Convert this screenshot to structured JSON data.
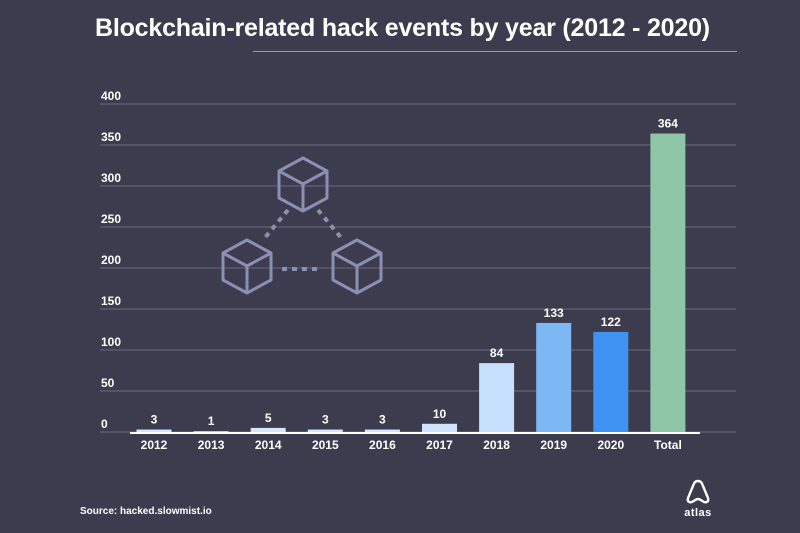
{
  "chart_data": {
    "type": "bar",
    "title": "Blockchain-related hack events by year (2012 - 2020)",
    "categories": [
      "2012",
      "2013",
      "2014",
      "2015",
      "2016",
      "2017",
      "2018",
      "2019",
      "2020",
      "Total"
    ],
    "values": [
      3,
      1,
      5,
      3,
      3,
      10,
      84,
      133,
      122,
      364
    ],
    "data_labels": [
      "3",
      "1",
      "5",
      "3",
      "3",
      "10",
      "84",
      "133",
      "122",
      "364"
    ],
    "bar_colors": [
      "#d6e7fb",
      "#d6e7fb",
      "#d6e7fb",
      "#d6e7fb",
      "#d6e7fb",
      "#cfe3fb",
      "#c5dffd",
      "#7db8f5",
      "#3e92f2",
      "#8ec5a6"
    ],
    "ylim": [
      0,
      400
    ],
    "yticks": [
      0,
      50,
      100,
      150,
      200,
      250,
      300,
      350,
      400
    ],
    "grid": true,
    "xlabel": "",
    "ylabel": ""
  },
  "source": "Source: hacked.slowmist.io",
  "logo": {
    "icon": "atlas-logo-icon",
    "text": "atlas"
  },
  "colors": {
    "background": "#3d3c4e",
    "grid": "#6a697a",
    "illustration": "#8a90b4",
    "text": "#ffffff"
  }
}
